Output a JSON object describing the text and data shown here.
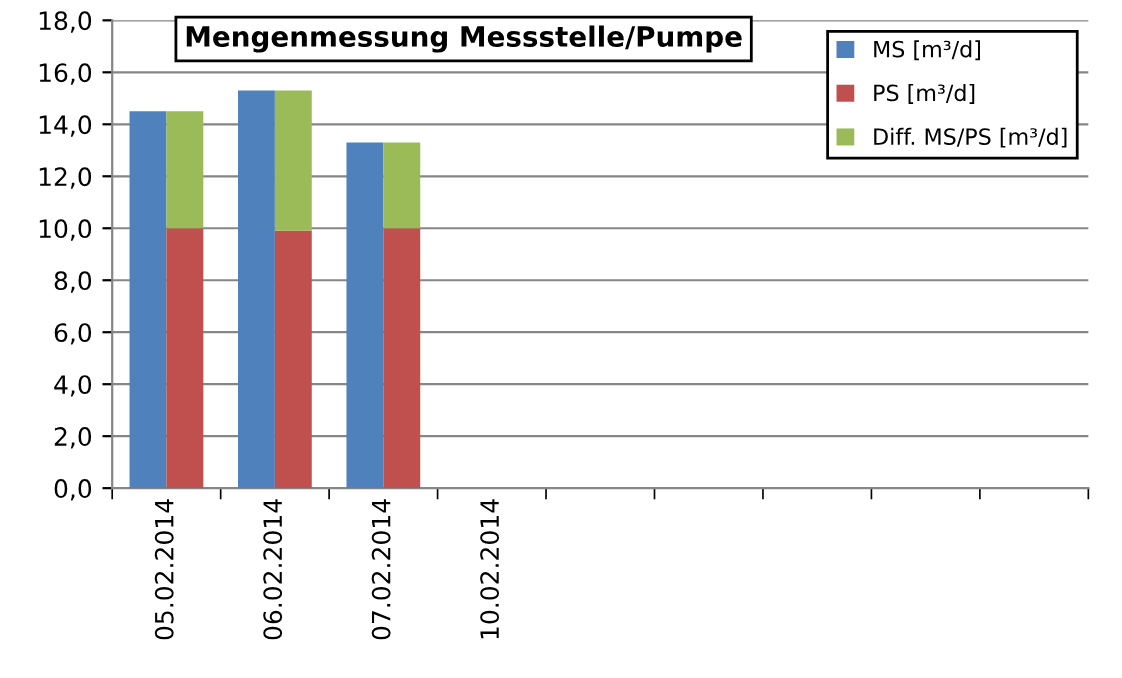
{
  "chart_data": {
    "type": "bar",
    "title": "Mengenmessung Messstelle/Pumpe",
    "categories": [
      "05.02.2014",
      "06.02.2014",
      "07.02.2014",
      "10.02.2014",
      null,
      null,
      null,
      null,
      null
    ],
    "series": [
      {
        "name": "MS [m³/d]",
        "color": "#4f81bd",
        "values": [
          14.5,
          15.3,
          13.3,
          null,
          null,
          null,
          null,
          null,
          null
        ]
      },
      {
        "name": "PS [m³/d]",
        "color": "#c0504d",
        "values": [
          10.0,
          9.9,
          10.0,
          null,
          null,
          null,
          null,
          null,
          null
        ]
      },
      {
        "name": "Diff. MS/PS [m³/d]",
        "color": "#9bbb59",
        "values": [
          4.5,
          5.4,
          3.3,
          null,
          null,
          null,
          null,
          null,
          null
        ],
        "base": [
          10.0,
          9.9,
          10.0,
          null,
          null,
          null,
          null,
          null,
          null
        ]
      }
    ],
    "ylim": [
      0,
      18
    ],
    "yticks": [
      {
        "value": 0,
        "label": "0,0"
      },
      {
        "value": 2,
        "label": "2,0"
      },
      {
        "value": 4,
        "label": "4,0"
      },
      {
        "value": 6,
        "label": "6,0"
      },
      {
        "value": 8,
        "label": "8,0"
      },
      {
        "value": 10,
        "label": "10,0"
      },
      {
        "value": 12,
        "label": "12,0"
      },
      {
        "value": 14,
        "label": "14,0"
      },
      {
        "value": 16,
        "label": "16,0"
      },
      {
        "value": 18,
        "label": "18,0"
      }
    ],
    "grid": "y",
    "legend": "top right"
  }
}
